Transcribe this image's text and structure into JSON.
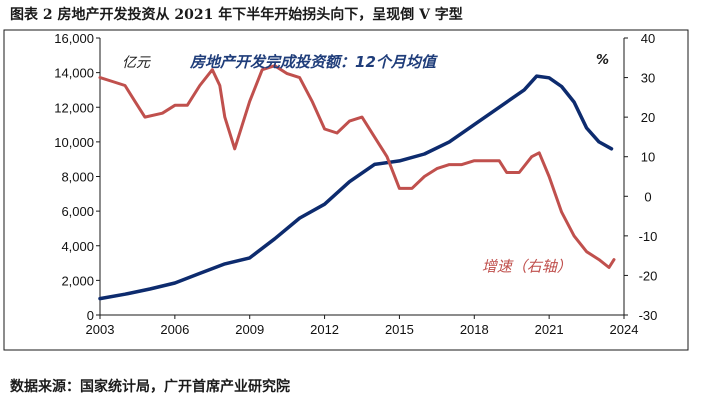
{
  "figure": {
    "title": "图表 2 房地产开发投资从 2021 年下半年开始拐头向下，呈现倒 V 字型",
    "source": "数据来源：国家统计局，广开首席产业研究院"
  },
  "chart_data": {
    "type": "line",
    "title": "房地产开发完成投资额：12个月均值",
    "unit_left": "亿元",
    "unit_right": "%",
    "x_ticks": [
      "2003",
      "2006",
      "2009",
      "2012",
      "2015",
      "2018",
      "2021",
      "2024"
    ],
    "xlim": [
      2003,
      2024
    ],
    "ylim_left": [
      0,
      16000
    ],
    "yticks_left": [
      "0",
      "2,000",
      "4,000",
      "6,000",
      "8,000",
      "10,000",
      "12,000",
      "14,000",
      "16,000"
    ],
    "ylim_right": [
      -30,
      40
    ],
    "yticks_right": [
      "-30",
      "-20",
      "-10",
      "0",
      "10",
      "20",
      "30",
      "40"
    ],
    "grid": false,
    "colors": {
      "level": "#0d2b6e",
      "growth": "#c0504d"
    },
    "series": [
      {
        "name": "",
        "axis": "left",
        "points": [
          [
            2003.0,
            950
          ],
          [
            2004.0,
            1200
          ],
          [
            2005.0,
            1500
          ],
          [
            2006.0,
            1850
          ],
          [
            2007.0,
            2400
          ],
          [
            2008.0,
            2950
          ],
          [
            2009.0,
            3300
          ],
          [
            2010.0,
            4400
          ],
          [
            2011.0,
            5600
          ],
          [
            2012.0,
            6400
          ],
          [
            2013.0,
            7700
          ],
          [
            2014.0,
            8700
          ],
          [
            2015.0,
            8900
          ],
          [
            2016.0,
            9300
          ],
          [
            2017.0,
            10000
          ],
          [
            2018.0,
            11000
          ],
          [
            2019.0,
            12000
          ],
          [
            2020.0,
            13000
          ],
          [
            2020.5,
            13800
          ],
          [
            2021.0,
            13700
          ],
          [
            2021.5,
            13200
          ],
          [
            2022.0,
            12300
          ],
          [
            2022.5,
            10800
          ],
          [
            2023.0,
            10000
          ],
          [
            2023.5,
            9600
          ]
        ]
      },
      {
        "name": "增速（右轴）",
        "axis": "right",
        "points": [
          [
            2003.0,
            30
          ],
          [
            2003.5,
            29
          ],
          [
            2004.0,
            28
          ],
          [
            2004.4,
            24
          ],
          [
            2004.8,
            20
          ],
          [
            2005.5,
            21
          ],
          [
            2006.0,
            23
          ],
          [
            2006.5,
            23
          ],
          [
            2007.0,
            28
          ],
          [
            2007.5,
            32
          ],
          [
            2007.8,
            28
          ],
          [
            2008.0,
            20
          ],
          [
            2008.4,
            12
          ],
          [
            2008.7,
            18
          ],
          [
            2009.0,
            24
          ],
          [
            2009.5,
            32
          ],
          [
            2010.0,
            33
          ],
          [
            2010.5,
            31
          ],
          [
            2011.0,
            30
          ],
          [
            2011.5,
            24
          ],
          [
            2012.0,
            17
          ],
          [
            2012.5,
            16
          ],
          [
            2013.0,
            19
          ],
          [
            2013.5,
            20
          ],
          [
            2014.0,
            15
          ],
          [
            2014.5,
            10
          ],
          [
            2015.0,
            2
          ],
          [
            2015.5,
            2
          ],
          [
            2016.0,
            5
          ],
          [
            2016.5,
            7
          ],
          [
            2017.0,
            8
          ],
          [
            2017.5,
            8
          ],
          [
            2018.0,
            9
          ],
          [
            2018.5,
            9
          ],
          [
            2019.0,
            9
          ],
          [
            2019.3,
            6
          ],
          [
            2019.8,
            6
          ],
          [
            2020.3,
            10
          ],
          [
            2020.6,
            11
          ],
          [
            2021.0,
            5
          ],
          [
            2021.5,
            -4
          ],
          [
            2022.0,
            -10
          ],
          [
            2022.5,
            -14
          ],
          [
            2023.0,
            -16
          ],
          [
            2023.4,
            -18
          ],
          [
            2023.6,
            -16
          ]
        ]
      }
    ]
  }
}
